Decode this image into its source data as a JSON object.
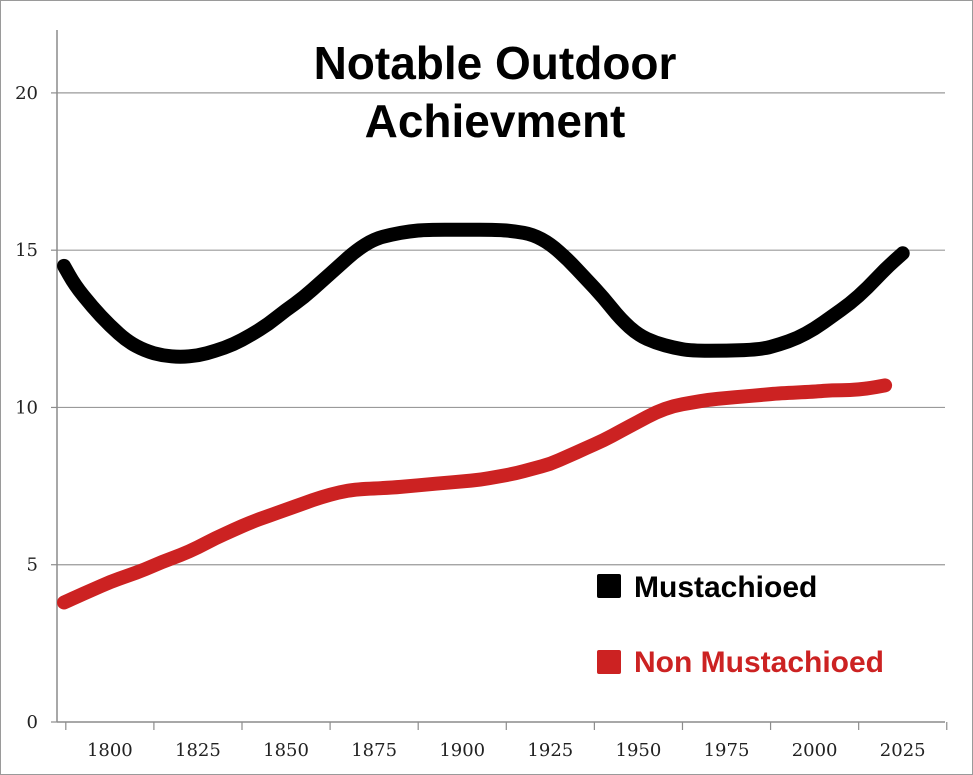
{
  "chart_data": {
    "type": "line",
    "title_lines": [
      "Notable Outdoor",
      "Achievment"
    ],
    "title": "Notable Outdoor Achievment",
    "xlabel": "",
    "ylabel": "",
    "xlim": [
      1785,
      2037
    ],
    "ylim": [
      0,
      22
    ],
    "x_ticks": [
      1800,
      1825,
      1850,
      1875,
      1900,
      1925,
      1950,
      1975,
      2000,
      2025
    ],
    "x_tick_labels": [
      "1800",
      "1825",
      "1850",
      "1875",
      "1900",
      "1925",
      "1950",
      "1975",
      "2000",
      "2025"
    ],
    "y_ticks": [
      0,
      5,
      10,
      15,
      20
    ],
    "y_tick_labels": [
      "0",
      "5",
      "10",
      "15",
      "20"
    ],
    "grid": true,
    "legend_position": "bottom-right",
    "series": [
      {
        "name": "Mustachioed",
        "color": "#000000",
        "points": [
          [
            1787,
            14.5
          ],
          [
            1790,
            13.9
          ],
          [
            1795,
            13.2
          ],
          [
            1800,
            12.6
          ],
          [
            1805,
            12.1
          ],
          [
            1810,
            11.8
          ],
          [
            1815,
            11.65
          ],
          [
            1820,
            11.6
          ],
          [
            1825,
            11.65
          ],
          [
            1830,
            11.8
          ],
          [
            1835,
            12.0
          ],
          [
            1840,
            12.3
          ],
          [
            1845,
            12.65
          ],
          [
            1850,
            13.1
          ],
          [
            1855,
            13.5
          ],
          [
            1860,
            14.0
          ],
          [
            1865,
            14.5
          ],
          [
            1870,
            15.0
          ],
          [
            1875,
            15.35
          ],
          [
            1880,
            15.5
          ],
          [
            1885,
            15.6
          ],
          [
            1890,
            15.65
          ],
          [
            1900,
            15.65
          ],
          [
            1910,
            15.65
          ],
          [
            1915,
            15.6
          ],
          [
            1920,
            15.5
          ],
          [
            1925,
            15.2
          ],
          [
            1930,
            14.7
          ],
          [
            1935,
            14.1
          ],
          [
            1940,
            13.5
          ],
          [
            1945,
            12.8
          ],
          [
            1950,
            12.3
          ],
          [
            1955,
            12.05
          ],
          [
            1960,
            11.9
          ],
          [
            1965,
            11.8
          ],
          [
            1975,
            11.8
          ],
          [
            1985,
            11.85
          ],
          [
            1990,
            12.0
          ],
          [
            1995,
            12.2
          ],
          [
            2000,
            12.5
          ],
          [
            2005,
            12.9
          ],
          [
            2010,
            13.3
          ],
          [
            2015,
            13.8
          ],
          [
            2020,
            14.4
          ],
          [
            2025,
            14.9
          ]
        ]
      },
      {
        "name": "Non Mustachioed",
        "color": "#cc2222",
        "points": [
          [
            1787,
            3.8
          ],
          [
            1790,
            3.95
          ],
          [
            1795,
            4.2
          ],
          [
            1800,
            4.45
          ],
          [
            1805,
            4.65
          ],
          [
            1810,
            4.85
          ],
          [
            1815,
            5.1
          ],
          [
            1820,
            5.3
          ],
          [
            1825,
            5.55
          ],
          [
            1830,
            5.85
          ],
          [
            1835,
            6.1
          ],
          [
            1840,
            6.35
          ],
          [
            1845,
            6.55
          ],
          [
            1850,
            6.75
          ],
          [
            1855,
            6.95
          ],
          [
            1860,
            7.15
          ],
          [
            1865,
            7.3
          ],
          [
            1870,
            7.4
          ],
          [
            1880,
            7.45
          ],
          [
            1885,
            7.5
          ],
          [
            1890,
            7.55
          ],
          [
            1895,
            7.6
          ],
          [
            1900,
            7.65
          ],
          [
            1905,
            7.7
          ],
          [
            1910,
            7.8
          ],
          [
            1915,
            7.9
          ],
          [
            1920,
            8.05
          ],
          [
            1925,
            8.2
          ],
          [
            1930,
            8.45
          ],
          [
            1935,
            8.7
          ],
          [
            1940,
            8.95
          ],
          [
            1945,
            9.25
          ],
          [
            1950,
            9.55
          ],
          [
            1955,
            9.85
          ],
          [
            1960,
            10.05
          ],
          [
            1965,
            10.15
          ],
          [
            1970,
            10.25
          ],
          [
            1975,
            10.3
          ],
          [
            1980,
            10.35
          ],
          [
            1985,
            10.4
          ],
          [
            1990,
            10.45
          ],
          [
            2000,
            10.5
          ],
          [
            2005,
            10.55
          ],
          [
            2010,
            10.55
          ],
          [
            2015,
            10.6
          ],
          [
            2020,
            10.7
          ]
        ]
      }
    ]
  }
}
